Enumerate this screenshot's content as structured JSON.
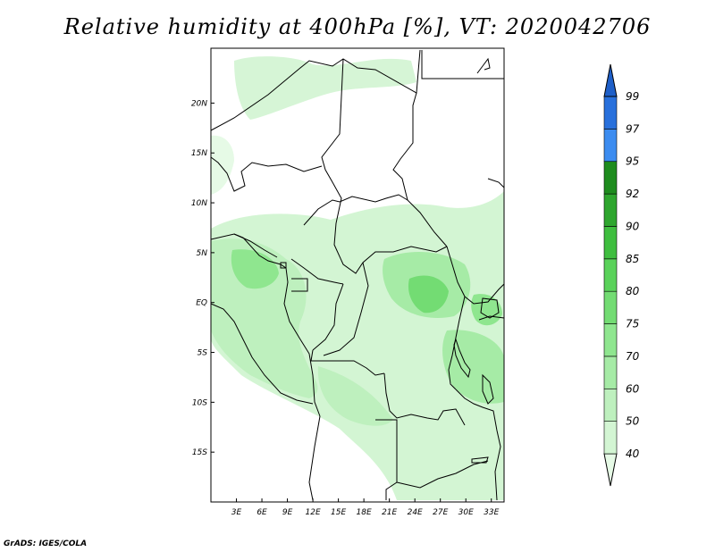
{
  "title": "Relative humidity at 400hPa [%], VT: 2020042706",
  "footer": "GrADS: IGES/COLA",
  "map": {
    "lon_range": [
      0,
      34.5
    ],
    "lat_range": [
      -20,
      25.5
    ],
    "lat_ticks": [
      {
        "value": 20,
        "label": "20N"
      },
      {
        "value": 15,
        "label": "15N"
      },
      {
        "value": 10,
        "label": "10N"
      },
      {
        "value": 5,
        "label": "5N"
      },
      {
        "value": 0,
        "label": "EQ"
      },
      {
        "value": -5,
        "label": "5S"
      },
      {
        "value": -10,
        "label": "10S"
      },
      {
        "value": -15,
        "label": "15S"
      }
    ],
    "lon_ticks": [
      {
        "value": 3,
        "label": "3E"
      },
      {
        "value": 6,
        "label": "6E"
      },
      {
        "value": 9,
        "label": "9E"
      },
      {
        "value": 12,
        "label": "12E"
      },
      {
        "value": 15,
        "label": "15E"
      },
      {
        "value": 18,
        "label": "18E"
      },
      {
        "value": 21,
        "label": "21E"
      },
      {
        "value": 24,
        "label": "24E"
      },
      {
        "value": 27,
        "label": "27E"
      },
      {
        "value": 30,
        "label": "30E"
      },
      {
        "value": 33,
        "label": "33E"
      }
    ]
  },
  "colorbar": {
    "levels": [
      "40",
      "50",
      "60",
      "70",
      "75",
      "80",
      "85",
      "90",
      "92",
      "95",
      "97",
      "99"
    ],
    "colors": [
      "#e6fae6",
      "#d3f5d3",
      "#bef0be",
      "#a6eba6",
      "#8fe68f",
      "#73dc73",
      "#5ad25a",
      "#3fbe3f",
      "#2ea62e",
      "#1e8c1e",
      "#3c8cf0",
      "#2870dc",
      "#1e5fc8"
    ]
  }
}
